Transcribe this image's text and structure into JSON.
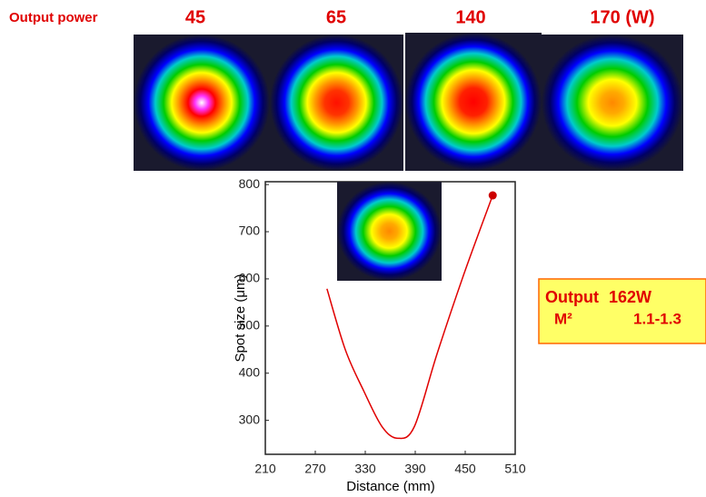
{
  "header": {
    "label": "Output power",
    "powers": [
      "45",
      "65",
      "140",
      "170 (W)"
    ]
  },
  "chart_data": {
    "type": "line",
    "xlabel": "Distance (mm)",
    "ylabel": "Spot size  (μm)",
    "xlim": [
      210,
      510
    ],
    "xticks": [
      210,
      270,
      330,
      390,
      450,
      510
    ],
    "ylim": [
      228,
      806
    ],
    "yticks": [
      300,
      400,
      500,
      600,
      700,
      800
    ],
    "series": [
      {
        "color": "#e00000",
        "x": [
          284,
          306,
          328,
          350,
          369,
          389,
          416,
          449,
          483
        ],
        "values": [
          579,
          450,
          363,
          287,
          262,
          287,
          440,
          613,
          777
        ]
      }
    ],
    "point": {
      "x": 483,
      "y": 777,
      "color": "#cc0000"
    }
  },
  "box": {
    "rows": [
      [
        "Output",
        "162W"
      ],
      [
        "M²",
        "1.1-1.3"
      ]
    ]
  }
}
